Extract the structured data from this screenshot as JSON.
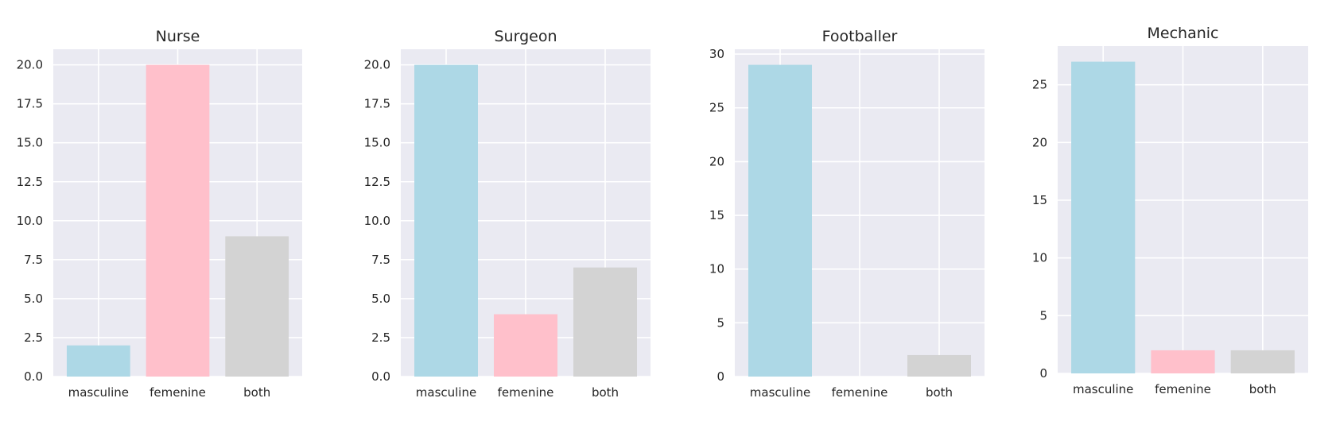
{
  "chart_data": [
    {
      "type": "bar",
      "title": "Nurse",
      "categories": [
        "masculine",
        "femenine",
        "both"
      ],
      "values": [
        2,
        20,
        9
      ],
      "ylim": [
        0,
        21
      ],
      "yticks": [
        0.0,
        2.5,
        5.0,
        7.5,
        10.0,
        12.5,
        15.0,
        17.5,
        20.0
      ],
      "ytick_labels": [
        "0.0",
        "2.5",
        "5.0",
        "7.5",
        "10.0",
        "12.5",
        "15.0",
        "17.5",
        "20.0"
      ],
      "colors": [
        "#add8e6",
        "#ffc0cb",
        "#d3d3d3"
      ],
      "grid": true
    },
    {
      "type": "bar",
      "title": "Surgeon",
      "categories": [
        "masculine",
        "femenine",
        "both"
      ],
      "values": [
        20,
        4,
        7
      ],
      "ylim": [
        0,
        21
      ],
      "yticks": [
        0.0,
        2.5,
        5.0,
        7.5,
        10.0,
        12.5,
        15.0,
        17.5,
        20.0
      ],
      "ytick_labels": [
        "0.0",
        "2.5",
        "5.0",
        "7.5",
        "10.0",
        "12.5",
        "15.0",
        "17.5",
        "20.0"
      ],
      "colors": [
        "#add8e6",
        "#ffc0cb",
        "#d3d3d3"
      ],
      "grid": true
    },
    {
      "type": "bar",
      "title": "Footballer",
      "categories": [
        "masculine",
        "femenine",
        "both"
      ],
      "values": [
        29,
        0,
        2
      ],
      "ylim": [
        0,
        30.45
      ],
      "yticks": [
        0,
        5,
        10,
        15,
        20,
        25,
        30
      ],
      "ytick_labels": [
        "0",
        "5",
        "10",
        "15",
        "20",
        "25",
        "30"
      ],
      "colors": [
        "#add8e6",
        "#ffc0cb",
        "#d3d3d3"
      ],
      "grid": true
    },
    {
      "type": "bar",
      "title": "Mechanic",
      "categories": [
        "masculine",
        "femenine",
        "both"
      ],
      "values": [
        27,
        2,
        2
      ],
      "ylim": [
        0,
        28.35
      ],
      "yticks": [
        0,
        5,
        10,
        15,
        20,
        25
      ],
      "ytick_labels": [
        "0",
        "5",
        "10",
        "15",
        "20",
        "25"
      ],
      "colors": [
        "#add8e6",
        "#ffc0cb",
        "#d3d3d3"
      ],
      "grid": true
    }
  ]
}
